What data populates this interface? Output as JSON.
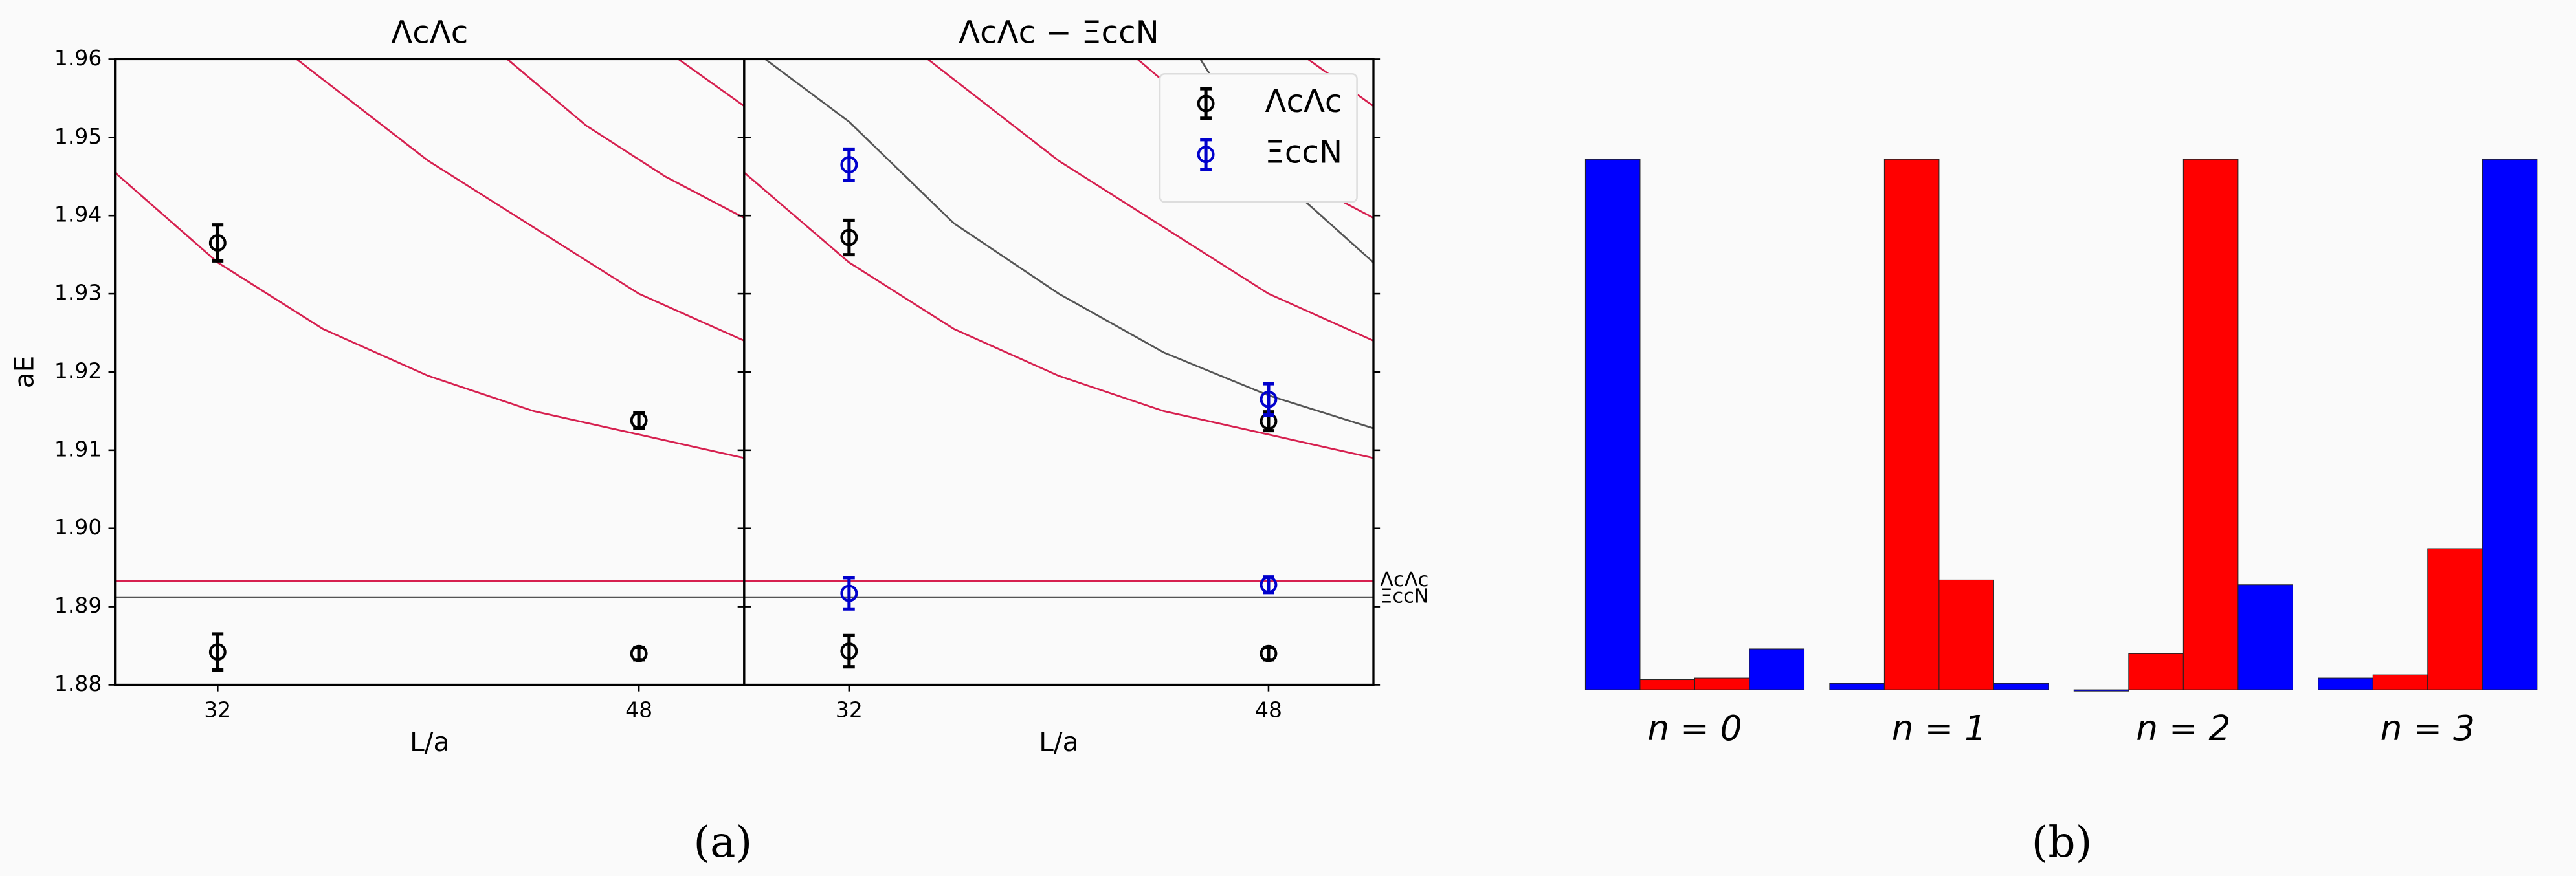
{
  "figure": {
    "captions": [
      "(a)",
      "(b)"
    ]
  },
  "chart_data": [
    {
      "type": "errorbar",
      "title": "ΛcΛc",
      "xlabel": "L/a",
      "ylabel": "aE",
      "xlim": [
        28.1,
        52
      ],
      "ylim": [
        1.88,
        1.96
      ],
      "xticks": [
        32,
        48
      ],
      "yticks": [
        1.88,
        1.89,
        {
          "value": 1.9,
          "label": "1.90"
        },
        1.91,
        1.92,
        1.93,
        1.94,
        1.95,
        1.96
      ],
      "ytick_labels": true,
      "legend": false,
      "lines": [
        {
          "color": "#d6204f",
          "x": [
            28.1,
            32,
            36,
            40,
            44,
            48,
            52
          ],
          "values": [
            1.9455,
            1.934,
            1.9255,
            1.9195,
            1.915,
            1.912,
            1.909
          ]
        },
        {
          "color": "#d6204f",
          "x": [
            35,
            40,
            44,
            48,
            52
          ],
          "values": [
            1.96,
            1.947,
            1.9385,
            1.93,
            1.924
          ]
        },
        {
          "color": "#d6204f",
          "x": [
            43,
            46,
            49,
            52
          ],
          "values": [
            1.96,
            1.9515,
            1.945,
            1.9397
          ]
        },
        {
          "color": "#d6204f",
          "x": [
            49.5,
            52
          ],
          "values": [
            1.96,
            1.954
          ]
        },
        {
          "color": "#d6204f",
          "x": [
            28.1,
            52
          ],
          "values": [
            1.8933,
            1.8933
          ]
        },
        {
          "color": "#555555",
          "x": [
            28.1,
            52
          ],
          "values": [
            1.8912,
            1.8912
          ]
        }
      ],
      "series": [
        {
          "color": "#000000",
          "x": [
            32,
            48,
            32,
            48
          ],
          "values": [
            1.9365,
            1.9138,
            1.8842,
            1.884
          ],
          "errors": [
            0.0023,
            0.001,
            0.0023,
            0.0008
          ]
        }
      ]
    },
    {
      "type": "errorbar",
      "title": "ΛcΛc − ΞccN",
      "xlabel": "L/a",
      "xlim": [
        28,
        52
      ],
      "ylim": [
        1.88,
        1.96
      ],
      "xticks": [
        32,
        48
      ],
      "yticks": [
        1.88,
        1.89,
        1.9,
        1.91,
        1.92,
        1.93,
        1.94,
        1.95,
        1.96
      ],
      "ytick_labels": false,
      "legend": "upper right",
      "lines": [
        {
          "color": "#d6204f",
          "x": [
            28,
            32,
            36,
            40,
            44,
            48,
            52
          ],
          "values": [
            1.9455,
            1.934,
            1.9255,
            1.9195,
            1.915,
            1.912,
            1.909
          ]
        },
        {
          "color": "#d6204f",
          "x": [
            35,
            40,
            44,
            48,
            52
          ],
          "values": [
            1.96,
            1.947,
            1.9385,
            1.93,
            1.924
          ]
        },
        {
          "color": "#d6204f",
          "x": [
            43,
            46,
            49,
            52
          ],
          "values": [
            1.96,
            1.9515,
            1.945,
            1.9397
          ]
        },
        {
          "color": "#d6204f",
          "x": [
            49.5,
            52
          ],
          "values": [
            1.96,
            1.954
          ]
        },
        {
          "color": "#555555",
          "x": [
            28.8,
            32,
            36,
            40,
            44,
            48,
            52
          ],
          "values": [
            1.96,
            1.952,
            1.939,
            1.93,
            1.9225,
            1.917,
            1.9128
          ]
        },
        {
          "color": "#555555",
          "x": [
            45.4,
            48,
            52
          ],
          "values": [
            1.96,
            1.946,
            1.934
          ]
        },
        {
          "color": "#d6204f",
          "x": [
            28,
            52
          ],
          "values": [
            1.8933,
            1.8933
          ],
          "label": "ΛcΛc"
        },
        {
          "color": "#555555",
          "x": [
            28,
            52
          ],
          "values": [
            1.8912,
            1.8912
          ],
          "label": "ΞccN"
        }
      ],
      "series": [
        {
          "name": "ΛcΛc",
          "color": "#000000",
          "x": [
            32,
            48,
            32,
            48
          ],
          "values": [
            1.9372,
            1.9137,
            1.8843,
            1.884
          ],
          "errors": [
            0.0022,
            0.0012,
            0.002,
            0.0008
          ]
        },
        {
          "name": "ΞccN",
          "color": "#0000cc",
          "x": [
            32,
            48,
            32,
            48
          ],
          "values": [
            1.9465,
            1.9165,
            1.8917,
            1.8928
          ],
          "errors": [
            0.002,
            0.002,
            0.002,
            0.001
          ]
        }
      ]
    },
    {
      "type": "bar",
      "categories": [
        "n = 0",
        "n = 1",
        "n = 2",
        "n = 3"
      ],
      "ylim": [
        0,
        1
      ],
      "series": [
        {
          "color": "#0000ff",
          "values": [
            1.0,
            0.012,
            0.0,
            0.022
          ]
        },
        {
          "color": "#ff0000",
          "values": [
            0.019,
            1.0,
            0.068,
            0.028
          ]
        },
        {
          "color": "#ff0000",
          "values": [
            0.022,
            0.207,
            1.0,
            0.266
          ]
        },
        {
          "color": "#0000ff",
          "values": [
            0.077,
            0.012,
            0.198,
            1.0
          ]
        }
      ]
    }
  ]
}
